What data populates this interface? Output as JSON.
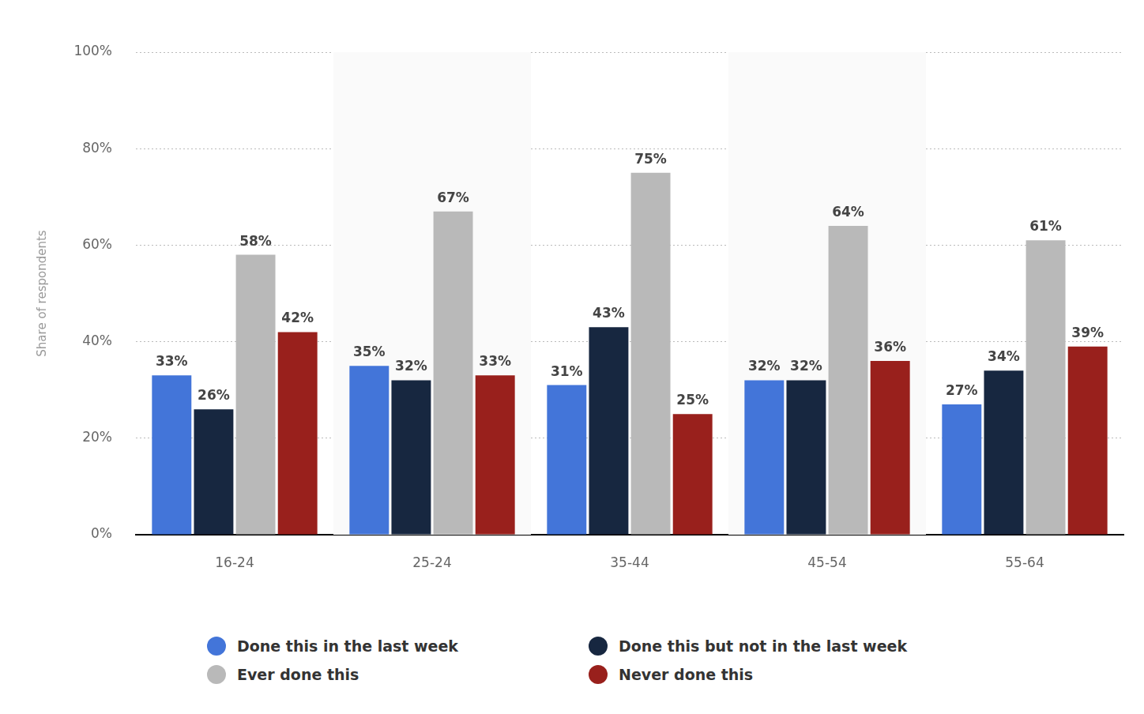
{
  "chart_data": {
    "type": "bar",
    "y_label": "Share of respondents",
    "categories": [
      "16-24",
      "25-24",
      "35-44",
      "45-54",
      "55-64"
    ],
    "series": [
      {
        "name": "Done this in the last week",
        "color": "#4375d9",
        "values": [
          33,
          35,
          31,
          32,
          27
        ],
        "value_labels": [
          "33%",
          "35%",
          "31%",
          "32%",
          "27%"
        ]
      },
      {
        "name": "Done this but not in the last week",
        "color": "#172740",
        "values": [
          26,
          32,
          43,
          32,
          34
        ],
        "value_labels": [
          "26%",
          "32%",
          "43%",
          "32%",
          "34%"
        ]
      },
      {
        "name": "Ever done this",
        "color": "#b9b9b9",
        "values": [
          58,
          67,
          75,
          64,
          61
        ],
        "value_labels": [
          "58%",
          "67%",
          "75%",
          "64%",
          "61%"
        ]
      },
      {
        "name": "Never done this",
        "color": "#99201c",
        "values": [
          42,
          33,
          25,
          36,
          39
        ],
        "value_labels": [
          "42%",
          "33%",
          "25%",
          "36%",
          "39%"
        ]
      }
    ],
    "ylim": [
      0,
      100
    ],
    "yticks": [
      {
        "value": 0,
        "label": "0%"
      },
      {
        "value": 20,
        "label": "20%"
      },
      {
        "value": 40,
        "label": "40%"
      },
      {
        "value": 60,
        "label": "60%"
      },
      {
        "value": 80,
        "label": "80%"
      },
      {
        "value": 100,
        "label": "100%"
      }
    ],
    "grid": true,
    "legend": "bottom",
    "data_labels": true
  }
}
